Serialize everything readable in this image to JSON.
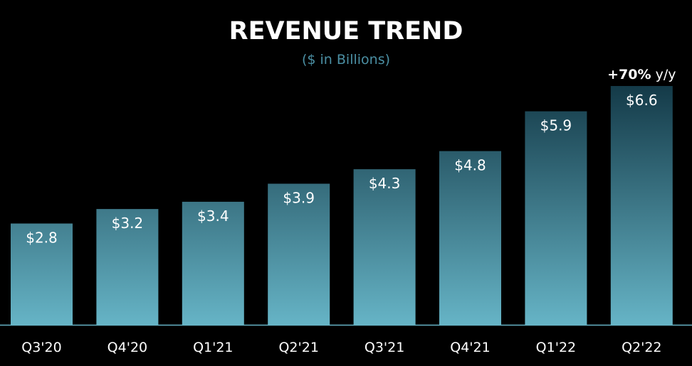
{
  "chart_data": {
    "type": "bar",
    "title": "REVENUE TREND",
    "subtitle": "($ in Billions)",
    "categories": [
      "Q3'20",
      "Q4'20",
      "Q1'21",
      "Q2'21",
      "Q3'21",
      "Q4'21",
      "Q1'22",
      "Q2'22"
    ],
    "values": [
      2.8,
      3.2,
      3.4,
      3.9,
      4.3,
      4.8,
      5.9,
      6.6
    ],
    "data_labels": [
      "$2.8",
      "$3.2",
      "$3.4",
      "$3.9",
      "$4.3",
      "$4.8",
      "$5.9",
      "$6.6"
    ],
    "annotation": {
      "category": "Q2'22",
      "bold_text": "+70%",
      "text": " y/y"
    },
    "ylim": [
      0,
      6.6
    ],
    "grid": false,
    "colors": {
      "background": "#000000",
      "bar_top": "#143a48",
      "bar_bottom": "#66b4c6",
      "axis": "#66b4c6",
      "subtitle": "#4b8fa3",
      "text": "#ffffff"
    }
  }
}
